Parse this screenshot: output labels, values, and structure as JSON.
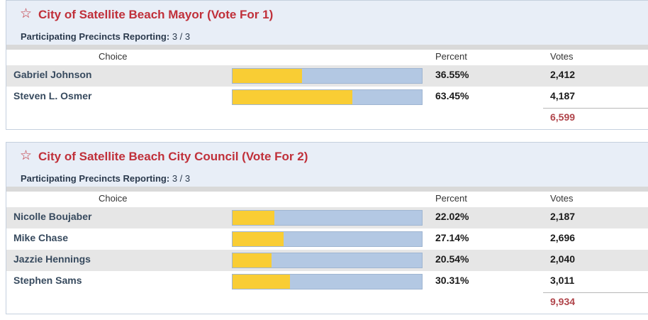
{
  "columns": {
    "choice": "Choice",
    "percent": "Percent",
    "votes": "Votes"
  },
  "colors": {
    "title": "#c0303a",
    "bar_fill": "#f9cd34",
    "bar_bg": "#b3c8e3",
    "total": "#b0444a"
  },
  "races": [
    {
      "title": "City of Satellite Beach Mayor (Vote For 1)",
      "reporting_label": "Participating Precincts Reporting:",
      "reporting_value": "3 / 3",
      "candidates": [
        {
          "name": "Gabriel Johnson",
          "percent": "36.55%",
          "votes": "2,412",
          "share": 0.3655
        },
        {
          "name": "Steven L. Osmer",
          "percent": "63.45%",
          "votes": "4,187",
          "share": 0.6345
        }
      ],
      "total": "6,599"
    },
    {
      "title": "City of Satellite Beach City Council (Vote For 2)",
      "reporting_label": "Participating Precincts Reporting:",
      "reporting_value": "3 / 3",
      "candidates": [
        {
          "name": "Nicolle Boujaber",
          "percent": "22.02%",
          "votes": "2,187",
          "share": 0.2202
        },
        {
          "name": "Mike Chase",
          "percent": "27.14%",
          "votes": "2,696",
          "share": 0.2714
        },
        {
          "name": "Jazzie Hennings",
          "percent": "20.54%",
          "votes": "2,040",
          "share": 0.2054
        },
        {
          "name": "Stephen Sams",
          "percent": "30.31%",
          "votes": "3,011",
          "share": 0.3031
        }
      ],
      "total": "9,934"
    }
  ]
}
